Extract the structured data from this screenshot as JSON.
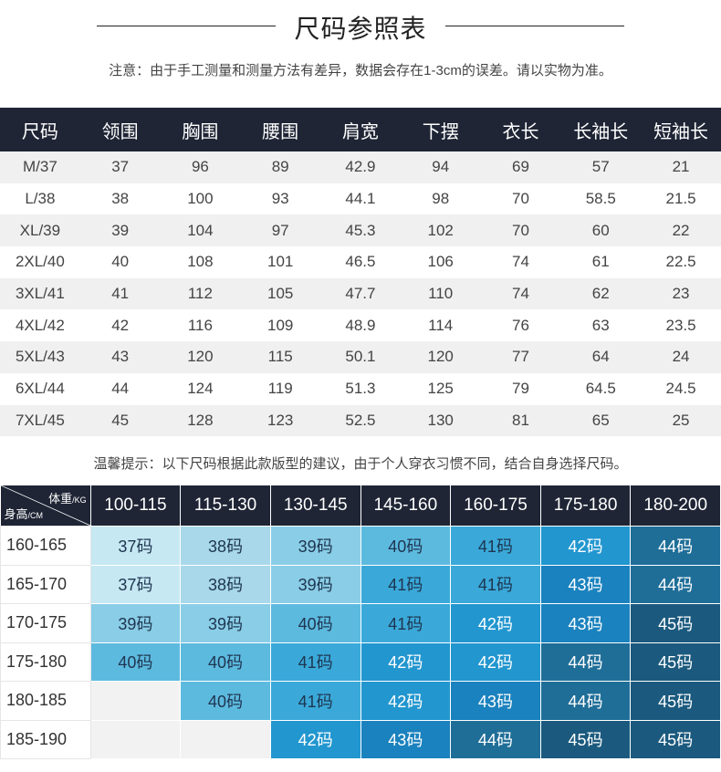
{
  "page": {
    "title": "尺码参照表",
    "note": "注意：由于手工测量和测量方法有差异，数据会存在1-3cm的误差。请以实物为准。",
    "tip": "温馨提示：以下尺码根据此款版型的建议，由于个人穿衣习惯不同，结合自身选择尺码。"
  },
  "size_table": {
    "headers": [
      "尺码",
      "领围",
      "胸围",
      "腰围",
      "肩宽",
      "下摆",
      "衣长",
      "长袖长",
      "短袖长"
    ],
    "rows": [
      [
        "M/37",
        "37",
        "96",
        "89",
        "42.9",
        "94",
        "69",
        "57",
        "21"
      ],
      [
        "L/38",
        "38",
        "100",
        "93",
        "44.1",
        "98",
        "70",
        "58.5",
        "21.5"
      ],
      [
        "XL/39",
        "39",
        "104",
        "97",
        "45.3",
        "102",
        "70",
        "60",
        "22"
      ],
      [
        "2XL/40",
        "40",
        "108",
        "101",
        "46.5",
        "106",
        "74",
        "61",
        "22.5"
      ],
      [
        "3XL/41",
        "41",
        "112",
        "105",
        "47.7",
        "110",
        "74",
        "62",
        "23"
      ],
      [
        "4XL/42",
        "42",
        "116",
        "109",
        "48.9",
        "114",
        "76",
        "63",
        "23.5"
      ],
      [
        "5XL/43",
        "43",
        "120",
        "115",
        "50.1",
        "120",
        "77",
        "64",
        "24"
      ],
      [
        "6XL/44",
        "44",
        "124",
        "119",
        "51.3",
        "125",
        "79",
        "64.5",
        "24.5"
      ],
      [
        "7XL/45",
        "45",
        "128",
        "123",
        "52.5",
        "130",
        "81",
        "65",
        "25"
      ]
    ]
  },
  "fit_table": {
    "corner_top": "体重",
    "corner_top_unit": "/KG",
    "corner_bottom": "身高",
    "corner_bottom_unit": "/CM",
    "weights": [
      "100-115",
      "115-130",
      "130-145",
      "145-160",
      "160-175",
      "175-180",
      "180-200"
    ],
    "rows": [
      {
        "height": "160-165",
        "cells": [
          "37码",
          "38码",
          "39码",
          "40码",
          "41码",
          "42码",
          "44码"
        ]
      },
      {
        "height": "165-170",
        "cells": [
          "37码",
          "38码",
          "39码",
          "41码",
          "41码",
          "43码",
          "44码"
        ]
      },
      {
        "height": "170-175",
        "cells": [
          "39码",
          "39码",
          "40码",
          "41码",
          "42码",
          "43码",
          "45码"
        ]
      },
      {
        "height": "175-180",
        "cells": [
          "40码",
          "40码",
          "41码",
          "42码",
          "42码",
          "44码",
          "45码"
        ]
      },
      {
        "height": "180-185",
        "cells": [
          "",
          "40码",
          "41码",
          "42码",
          "43码",
          "44码",
          "45码"
        ]
      },
      {
        "height": "185-190",
        "cells": [
          "",
          "",
          "42码",
          "43码",
          "44码",
          "45码",
          "45码"
        ]
      }
    ],
    "colors": {
      "37码": "#c6e8f3",
      "38码": "#a8d8ea",
      "39码": "#8acde6",
      "40码": "#5dbadf",
      "41码": "#3aa9d9",
      "42码": "#2296cf",
      "43码": "#1a82be",
      "44码": "#1f6e98",
      "45码": "#1b5a7e"
    }
  }
}
